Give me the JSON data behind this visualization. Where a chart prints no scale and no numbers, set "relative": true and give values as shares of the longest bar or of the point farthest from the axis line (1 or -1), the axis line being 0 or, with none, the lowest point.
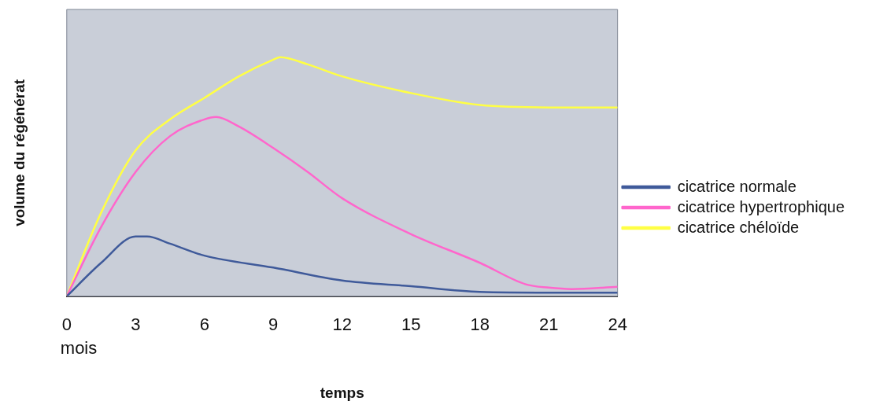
{
  "chart_data": {
    "type": "line",
    "xlabel": "temps",
    "ylabel": "volume du régénérat",
    "annotations": [
      "mois"
    ],
    "relative": true,
    "xlim": [
      0,
      24
    ],
    "xticks": [
      0,
      3,
      6,
      9,
      12,
      15,
      18,
      21,
      24
    ],
    "legend": "right",
    "series": [
      {
        "name": "cicatrice normale",
        "color": "#3f5a9a",
        "x": [
          0,
          1.5,
          3,
          3.5,
          4.5,
          6,
          9,
          12,
          15,
          18,
          21,
          24
        ],
        "values": [
          0,
          0.14,
          0.25,
          0.25,
          0.22,
          0.17,
          0.12,
          0.066,
          0.042,
          0.018,
          0.015,
          0.015
        ]
      },
      {
        "name": "cicatrice hypertrophique",
        "color": "#ff66cc",
        "x": [
          0,
          1.5,
          3,
          4.5,
          6,
          6.5,
          7.5,
          9,
          10.5,
          12,
          15,
          18,
          20,
          21,
          22,
          24
        ],
        "values": [
          0,
          0.29,
          0.52,
          0.67,
          0.74,
          0.75,
          0.71,
          0.62,
          0.52,
          0.41,
          0.26,
          0.14,
          0.05,
          0.036,
          0.03,
          0.04
        ]
      },
      {
        "name": "cicatrice chéloïde",
        "color": "#ffff44",
        "x": [
          0,
          1.5,
          3,
          4.5,
          6,
          7.5,
          9,
          9.3,
          10.5,
          12,
          15,
          18,
          21,
          24
        ],
        "values": [
          0,
          0.35,
          0.61,
          0.74,
          0.83,
          0.92,
          0.99,
          1,
          0.97,
          0.92,
          0.85,
          0.8,
          0.79,
          0.79
        ]
      }
    ]
  }
}
